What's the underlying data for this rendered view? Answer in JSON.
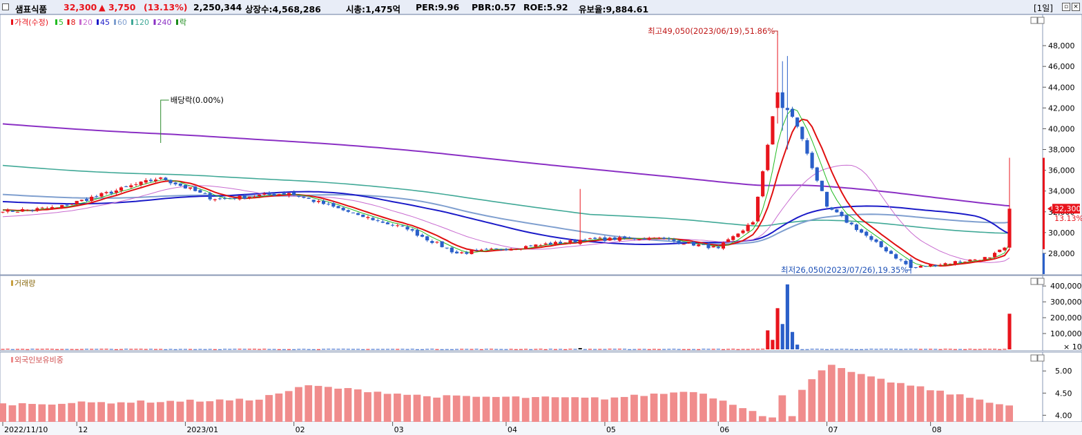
{
  "header": {
    "stock_name": "샘표식품",
    "price": "32,300",
    "change": "▲ 3,750",
    "change_pct": "(13.13%)",
    "volume": "2,250,344",
    "shares": "상장수:4,568,286",
    "market_cap": "시총:1,475억",
    "per": "PER:9.96",
    "pbr": "PBR:0.57",
    "roe": "ROE:5.92",
    "reserve": "유보율:9,884.61",
    "period": "[1일]"
  },
  "colors": {
    "up": "#e8141c",
    "down": "#2a5fc9",
    "ma5": "#22bb22",
    "ma8": "#e01010",
    "ma20": "#c86ad0",
    "ma45": "#1a1ac8",
    "ma60": "#7f9fcf",
    "ma120": "#3fa896",
    "ma240": "#8a2fc4",
    "foreign": "#f08c8c"
  },
  "chart_data": [
    {
      "type": "candlestick",
      "title": "가격(수정)",
      "legend": [
        {
          "label": "가격(수정)",
          "color": "#e8141c"
        },
        {
          "label": "5",
          "color": "#22bb22"
        },
        {
          "label": "8",
          "color": "#e01010"
        },
        {
          "label": "20",
          "color": "#c86ad0"
        },
        {
          "label": "45",
          "color": "#1a1ac8"
        },
        {
          "label": "60",
          "color": "#7f9fcf"
        },
        {
          "label": "120",
          "color": "#3fa896"
        },
        {
          "label": "240",
          "color": "#8a2fc4"
        },
        {
          "label": "락",
          "color": "#1a8a1a"
        }
      ],
      "yticks": [
        "48,000",
        "46,000",
        "44,000",
        "42,000",
        "40,000",
        "38,000",
        "36,000",
        "34,000",
        "32,000",
        "30,000",
        "28,000"
      ],
      "ylim": [
        26000,
        50200
      ],
      "x_labels": [
        "2022/11/10",
        "12",
        "2023/01",
        "02",
        "03",
        "04",
        "05",
        "06",
        "07",
        "08"
      ],
      "current_price_label": "32,300",
      "current_pct_label": "13.13%",
      "annotations": {
        "high": "최고49,050(2023/06/19),51.86%",
        "low": "최저26,050(2023/07/26),19.35%",
        "dividend": "배당락(0.00%)"
      },
      "ohlc_keypoints": [
        {
          "date": "2022/11/10",
          "close": 32000
        },
        {
          "date": "2022/11/25",
          "close": 32400
        },
        {
          "date": "2022/12/26",
          "close": 35300
        },
        {
          "date": "2023/01/10",
          "close": 33200
        },
        {
          "date": "2023/01/31",
          "close": 33800
        },
        {
          "date": "2023/02/20",
          "close": 31700
        },
        {
          "date": "2023/03/06",
          "close": 30300
        },
        {
          "date": "2023/03/20",
          "close": 28000
        },
        {
          "date": "2023/04/10",
          "close": 28700
        },
        {
          "date": "2023/04/25",
          "close": 29300
        },
        {
          "date": "2023/05/15",
          "close": 29500
        },
        {
          "date": "2023/06/01",
          "close": 28500
        },
        {
          "date": "2023/06/12",
          "close": 31000
        },
        {
          "date": "2023/06/19",
          "close": 43500
        },
        {
          "date": "2023/06/23",
          "close": 40200
        },
        {
          "date": "2023/07/03",
          "close": 32500
        },
        {
          "date": "2023/07/14",
          "close": 29300
        },
        {
          "date": "2023/07/26",
          "close": 26600
        },
        {
          "date": "2023/08/17",
          "close": 27600
        },
        {
          "date": "2023/08/22",
          "close": 28550
        },
        {
          "date": "2023/08/23",
          "close": 32300
        }
      ]
    },
    {
      "type": "bar",
      "title": "거래량",
      "yticks": [
        "400,000",
        "300,000",
        "200,000",
        "100,000"
      ],
      "unit_label": "× 10",
      "ylim": [
        0,
        440000
      ],
      "notable_values": [
        {
          "date": "2023/04/24",
          "value": 8000
        },
        {
          "date": "2023/06/15",
          "value": 120000
        },
        {
          "date": "2023/06/16",
          "value": 60000
        },
        {
          "date": "2023/06/19",
          "value": 260000
        },
        {
          "date": "2023/06/20",
          "value": 160000
        },
        {
          "date": "2023/06/21",
          "value": 410000
        },
        {
          "date": "2023/06/22",
          "value": 110000
        },
        {
          "date": "2023/06/23",
          "value": 30000
        },
        {
          "date": "2023/08/23",
          "value": 225000
        }
      ]
    },
    {
      "type": "bar",
      "title": "외국인보유비중",
      "yticks": [
        "5.00",
        "4.50",
        "4.00"
      ],
      "ylim": [
        3.85,
        5.3
      ],
      "keypoints": [
        {
          "date": "2022/11/10",
          "value": 4.25
        },
        {
          "date": "2023/01/20",
          "value": 4.35
        },
        {
          "date": "2023/02/06",
          "value": 4.67
        },
        {
          "date": "2023/03/10",
          "value": 4.43
        },
        {
          "date": "2023/05/01",
          "value": 4.38
        },
        {
          "date": "2023/05/25",
          "value": 4.55
        },
        {
          "date": "2023/06/16",
          "value": 3.97
        },
        {
          "date": "2023/06/26",
          "value": 4.6
        },
        {
          "date": "2023/07/03",
          "value": 5.15
        },
        {
          "date": "2023/07/13",
          "value": 4.87
        },
        {
          "date": "2023/08/23",
          "value": 4.22
        }
      ]
    }
  ]
}
